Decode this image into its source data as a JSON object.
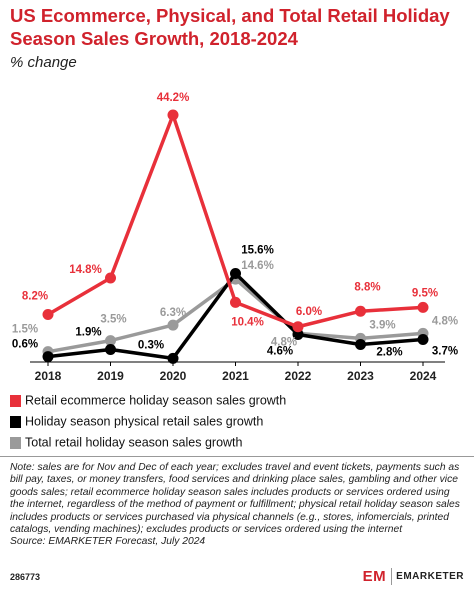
{
  "chart_data": {
    "type": "line",
    "title": "US Ecommerce, Physical, and Total Retail Holiday Season Sales Growth, 2018-2024",
    "subtitle": "% change",
    "categories": [
      "2018",
      "2019",
      "2020",
      "2021",
      "2022",
      "2023",
      "2024"
    ],
    "series": [
      {
        "name": "Retail ecommerce holiday season sales growth",
        "color": "#e8303a",
        "values": [
          8.2,
          14.8,
          44.2,
          10.4,
          6.0,
          8.8,
          9.5
        ],
        "value_labels": [
          "8.2%",
          "14.8%",
          "44.2%",
          "10.4%",
          "6.0%",
          "8.8%",
          "9.5%"
        ]
      },
      {
        "name": "Holiday season physical retail sales growth",
        "color": "#000000",
        "values": [
          0.6,
          1.9,
          0.3,
          15.6,
          4.6,
          2.8,
          3.7
        ],
        "value_labels": [
          "0.6%",
          "1.9%",
          "0.3%",
          "15.6%",
          "4.6%",
          "2.8%",
          "3.7%"
        ]
      },
      {
        "name": "Total retail holiday season sales growth",
        "color": "#9a9a9a",
        "values": [
          1.5,
          3.5,
          6.3,
          14.6,
          4.8,
          3.9,
          4.8
        ],
        "value_labels": [
          "1.5%",
          "3.5%",
          "6.3%",
          "14.6%",
          "4.8%",
          "3.9%",
          "4.8%"
        ]
      }
    ],
    "note": "Note: sales are for Nov and Dec of each year; excludes travel and event tickets, payments such as bill pay, taxes, or money transfers, food services and drinking place sales, gambling and other vice goods sales; retail ecommerce holiday season sales includes products or services ordered using the internet, regardless of the method of payment or fulfillment; physical retail holiday season sales includes products or services purchased via physical channels (e.g., stores, infomercials, printed catalogs, vending machines); excludes products or services ordered using the internet",
    "source": "Source: EMARKETER Forecast, July 2024",
    "chart_id": "286773",
    "brand": "EMARKETER"
  }
}
